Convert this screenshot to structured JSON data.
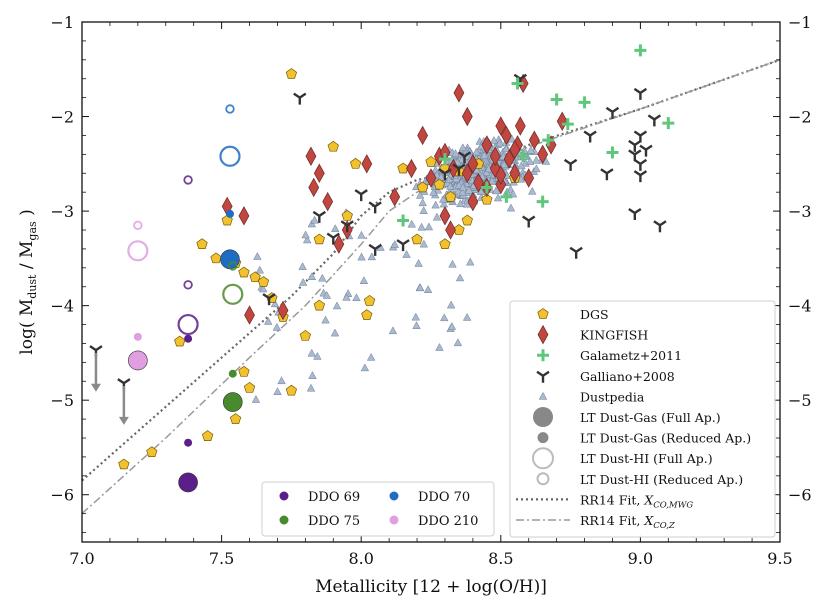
{
  "chart_data": {
    "type": "scatter",
    "xlabel": "Metallicity [12 + log(O/H)]",
    "ylabel": "log( M_dust / M_gas )",
    "xlim": [
      7.0,
      9.5
    ],
    "ylim": [
      -6.5,
      -1.0
    ],
    "xticks": [
      "7.0",
      "7.5",
      "8.0",
      "8.5",
      "9.0",
      "9.5"
    ],
    "yticks": [
      "−1",
      "−2",
      "−3",
      "−4",
      "−5",
      "−6"
    ],
    "legend_main": [
      {
        "label": "DGS",
        "marker": "pentagon",
        "color": "#f2c12e"
      },
      {
        "label": "KINGFISH",
        "marker": "diamond",
        "color": "#c0463f"
      },
      {
        "label": "Galametz+2011",
        "marker": "plus",
        "color": "#5ec77c"
      },
      {
        "label": "Galliano+2008",
        "marker": "tri",
        "color": "#333333"
      },
      {
        "label": "Dustpedia",
        "marker": "triangle",
        "color": "#a9b9cf"
      },
      {
        "label": "LT Dust-Gas (Full Ap.)",
        "marker": "big-filled",
        "color": "#888888"
      },
      {
        "label": "LT Dust-Gas (Reduced Ap.)",
        "marker": "small-filled",
        "color": "#888888"
      },
      {
        "label": "LT Dust-HI (Full Ap.)",
        "marker": "big-open",
        "color": "#bbbbbb"
      },
      {
        "label": "LT Dust-HI (Reduced Ap.)",
        "marker": "small-open",
        "color": "#bbbbbb"
      },
      {
        "label": "RR14 Fit, ",
        "sub": "X",
        "subsub": "CO,MWG",
        "marker": "dotted",
        "color": "#666666"
      },
      {
        "label": "RR14 Fit, ",
        "sub": "X",
        "subsub": "CO,Z",
        "marker": "dashdot",
        "color": "#999999"
      }
    ],
    "legend_galaxies": [
      {
        "label": "DDO 69",
        "color": "#5b1f8a"
      },
      {
        "label": "DDO 70",
        "color": "#1f6cc4"
      },
      {
        "label": "DDO 75",
        "color": "#4a8a2e"
      },
      {
        "label": "DDO 210",
        "color": "#df9fe0"
      }
    ],
    "colors": {
      "DDO 69": "#5b1f8a",
      "DDO 70": "#1f6cc4",
      "DDO 75": "#4a8a2e",
      "DDO 210": "#df9fe0"
    },
    "dgs": [
      [
        7.75,
        -1.55
      ],
      [
        7.43,
        -3.35
      ],
      [
        7.48,
        -3.5
      ],
      [
        7.52,
        -3.1
      ],
      [
        7.58,
        -3.65
      ],
      [
        7.62,
        -3.7
      ],
      [
        7.65,
        -3.75
      ],
      [
        7.68,
        -3.92
      ],
      [
        7.72,
        -4.12
      ],
      [
        7.85,
        -3.3
      ],
      [
        7.9,
        -2.32
      ],
      [
        7.98,
        -2.5
      ],
      [
        7.95,
        -3.05
      ],
      [
        7.85,
        -4.0
      ],
      [
        7.8,
        -4.32
      ],
      [
        8.03,
        -3.95
      ],
      [
        8.02,
        -4.1
      ],
      [
        7.55,
        -5.2
      ],
      [
        7.58,
        -4.7
      ],
      [
        7.6,
        -4.87
      ],
      [
        7.75,
        -4.9
      ],
      [
        7.35,
        -4.38
      ],
      [
        7.25,
        -5.55
      ],
      [
        7.15,
        -5.68
      ],
      [
        7.45,
        -5.38
      ],
      [
        7.55,
        -3.55
      ],
      [
        8.15,
        -2.55
      ],
      [
        8.2,
        -3.3
      ],
      [
        8.25,
        -2.48
      ],
      [
        8.3,
        -2.55
      ],
      [
        8.35,
        -2.58
      ],
      [
        8.28,
        -2.72
      ],
      [
        8.32,
        -2.85
      ],
      [
        8.38,
        -3.1
      ],
      [
        8.3,
        -3.35
      ],
      [
        8.42,
        -2.5
      ],
      [
        8.45,
        -2.88
      ],
      [
        8.55,
        -2.65
      ],
      [
        8.22,
        -2.75
      ],
      [
        8.35,
        -3.2
      ]
    ],
    "kingfish": [
      [
        7.52,
        -2.95
      ],
      [
        7.58,
        -3.05
      ],
      [
        7.6,
        -4.1
      ],
      [
        7.72,
        -4.05
      ],
      [
        7.82,
        -2.42
      ],
      [
        7.83,
        -2.75
      ],
      [
        7.85,
        -2.6
      ],
      [
        7.88,
        -2.9
      ],
      [
        7.92,
        -3.35
      ],
      [
        7.95,
        -3.2
      ],
      [
        8.02,
        -2.5
      ],
      [
        8.12,
        -2.85
      ],
      [
        8.18,
        -2.55
      ],
      [
        8.22,
        -2.2
      ],
      [
        8.25,
        -2.65
      ],
      [
        8.28,
        -2.42
      ],
      [
        8.3,
        -2.38
      ],
      [
        8.33,
        -2.55
      ],
      [
        8.35,
        -1.75
      ],
      [
        8.38,
        -2.0
      ],
      [
        8.4,
        -2.5
      ],
      [
        8.42,
        -2.7
      ],
      [
        8.45,
        -2.3
      ],
      [
        8.48,
        -2.55
      ],
      [
        8.5,
        -2.1
      ],
      [
        8.52,
        -2.2
      ],
      [
        8.53,
        -2.45
      ],
      [
        8.55,
        -2.6
      ],
      [
        8.56,
        -2.3
      ],
      [
        8.57,
        -2.1
      ],
      [
        8.6,
        -2.65
      ],
      [
        8.62,
        -2.25
      ],
      [
        8.65,
        -2.4
      ],
      [
        8.68,
        -2.3
      ],
      [
        8.72,
        -2.05
      ],
      [
        8.3,
        -3.05
      ],
      [
        8.32,
        -3.2
      ],
      [
        8.38,
        -2.6
      ],
      [
        8.4,
        -2.9
      ],
      [
        8.45,
        -2.75
      ],
      [
        8.5,
        -2.72
      ],
      [
        8.55,
        -2.35
      ],
      [
        8.58,
        -1.65
      ],
      [
        8.48,
        -2.42
      ],
      [
        8.5,
        -2.62
      ]
    ],
    "galametz": [
      [
        9.0,
        -1.3
      ],
      [
        8.56,
        -1.65
      ],
      [
        8.7,
        -1.82
      ],
      [
        8.8,
        -1.85
      ],
      [
        8.74,
        -2.08
      ],
      [
        9.1,
        -2.07
      ],
      [
        8.67,
        -2.25
      ],
      [
        8.9,
        -2.38
      ],
      [
        8.58,
        -2.42
      ],
      [
        8.3,
        -2.45
      ],
      [
        8.65,
        -2.9
      ],
      [
        8.15,
        -3.1
      ],
      [
        8.52,
        -2.85
      ],
      [
        8.45,
        -2.75
      ]
    ],
    "galliano": [
      [
        7.05,
        -4.47
      ],
      [
        7.15,
        -4.82
      ],
      [
        7.78,
        -1.8
      ],
      [
        8.57,
        -1.6
      ],
      [
        9.0,
        -1.75
      ],
      [
        8.9,
        -1.95
      ],
      [
        9.05,
        -2.03
      ],
      [
        8.82,
        -2.2
      ],
      [
        9.0,
        -2.2
      ],
      [
        8.98,
        -2.3
      ],
      [
        9.02,
        -2.35
      ],
      [
        8.98,
        -2.4
      ],
      [
        9.0,
        -2.5
      ],
      [
        9.0,
        -2.62
      ],
      [
        8.88,
        -2.6
      ],
      [
        8.75,
        -2.5
      ],
      [
        8.0,
        -2.82
      ],
      [
        8.05,
        -2.95
      ],
      [
        7.95,
        -3.15
      ],
      [
        7.85,
        -3.05
      ],
      [
        7.9,
        -3.28
      ],
      [
        8.05,
        -3.4
      ],
      [
        8.15,
        -3.35
      ],
      [
        8.3,
        -2.6
      ],
      [
        8.35,
        -2.55
      ],
      [
        8.6,
        -3.1
      ],
      [
        8.77,
        -3.43
      ],
      [
        8.98,
        -3.02
      ],
      [
        9.07,
        -3.15
      ],
      [
        7.67,
        -3.92
      ],
      [
        8.37,
        -2.42
      ]
    ],
    "rr14_mwg": [
      [
        7.0,
        -5.85
      ],
      [
        7.5,
        -4.55
      ],
      [
        7.75,
        -3.9
      ],
      [
        7.9,
        -3.45
      ],
      [
        8.0,
        -3.05
      ],
      [
        8.1,
        -2.8
      ],
      [
        8.2,
        -2.67
      ],
      [
        8.4,
        -2.55
      ],
      [
        8.6,
        -2.3
      ],
      [
        9.0,
        -1.92
      ],
      [
        9.5,
        -1.4
      ]
    ],
    "rr14_z": [
      [
        7.0,
        -6.2
      ],
      [
        7.3,
        -5.4
      ],
      [
        7.6,
        -4.55
      ],
      [
        7.8,
        -4.0
      ],
      [
        8.0,
        -3.35
      ],
      [
        8.1,
        -3.0
      ],
      [
        8.2,
        -2.8
      ],
      [
        8.4,
        -2.58
      ],
      [
        8.6,
        -2.32
      ],
      [
        9.0,
        -1.92
      ],
      [
        9.5,
        -1.4
      ]
    ],
    "lt_points": [
      {
        "galaxy": "DDO 69",
        "kind": "big-filled",
        "x": 7.38,
        "y": -5.87
      },
      {
        "galaxy": "DDO 69",
        "kind": "small-filled",
        "x": 7.38,
        "y": -5.45
      },
      {
        "galaxy": "DDO 69",
        "kind": "small-filled",
        "x": 7.38,
        "y": -4.35
      },
      {
        "galaxy": "DDO 69",
        "kind": "big-open",
        "x": 7.38,
        "y": -4.2
      },
      {
        "galaxy": "DDO 69",
        "kind": "small-open",
        "x": 7.38,
        "y": -3.78
      },
      {
        "galaxy": "DDO 69",
        "kind": "small-open",
        "x": 7.38,
        "y": -2.67
      },
      {
        "galaxy": "DDO 70",
        "kind": "big-filled",
        "x": 7.53,
        "y": -3.51
      },
      {
        "galaxy": "DDO 70",
        "kind": "small-filled",
        "x": 7.53,
        "y": -3.03
      },
      {
        "galaxy": "DDO 70",
        "kind": "big-open",
        "x": 7.53,
        "y": -2.42
      },
      {
        "galaxy": "DDO 70",
        "kind": "small-open",
        "x": 7.53,
        "y": -1.92
      },
      {
        "galaxy": "DDO 75",
        "kind": "big-filled",
        "x": 7.54,
        "y": -5.02
      },
      {
        "galaxy": "DDO 75",
        "kind": "small-filled",
        "x": 7.54,
        "y": -4.72
      },
      {
        "galaxy": "DDO 75",
        "kind": "big-open",
        "x": 7.54,
        "y": -3.88
      },
      {
        "galaxy": "DDO 75",
        "kind": "small-open",
        "x": 7.54,
        "y": -3.58
      },
      {
        "galaxy": "DDO 210",
        "kind": "big-filled",
        "x": 7.2,
        "y": -4.58
      },
      {
        "galaxy": "DDO 210",
        "kind": "small-filled",
        "x": 7.2,
        "y": -4.33
      },
      {
        "galaxy": "DDO 210",
        "kind": "big-open",
        "x": 7.2,
        "y": -3.42
      },
      {
        "galaxy": "DDO 210",
        "kind": "small-open",
        "x": 7.2,
        "y": -3.15
      }
    ],
    "upper_limit_arrows": [
      {
        "x": 7.05,
        "y_from": -4.5,
        "y_to": -4.9
      },
      {
        "x": 7.15,
        "y_from": -4.85,
        "y_to": -5.25
      }
    ]
  }
}
